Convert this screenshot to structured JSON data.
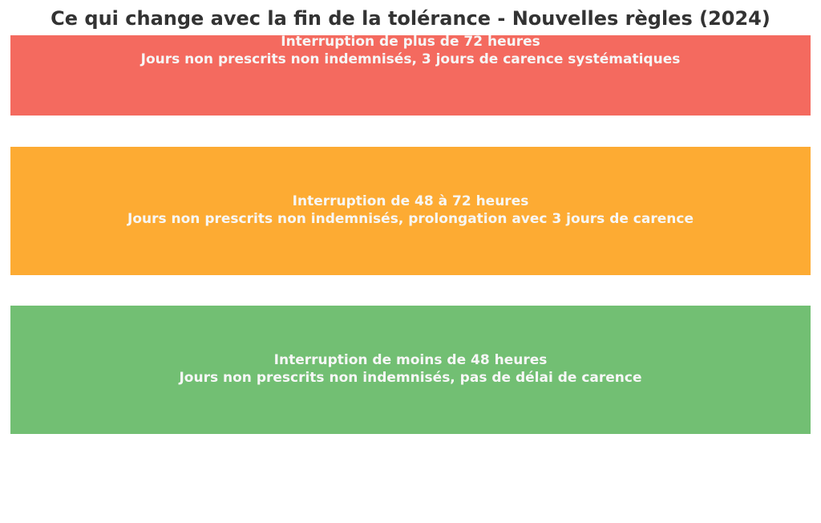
{
  "header": {
    "title": "Ce qui change avec la fin de la tolérance - Nouvelles règles (2024)"
  },
  "blocks": [
    {
      "title": "Interruption de plus de 72 heures",
      "description": "Jours non prescrits non indemnisés, 3 jours de carence systématiques",
      "color": "#f46a5f"
    },
    {
      "title": "Interruption de 48 à 72 heures",
      "description": "Jours non prescrits non indemnisés, prolongation avec 3 jours de carence",
      "color": "#fdab33"
    },
    {
      "title": "Interruption de moins de 48 heures",
      "description": "Jours non prescrits non indemnisés, pas de délai de carence",
      "color": "#72bf73"
    }
  ]
}
